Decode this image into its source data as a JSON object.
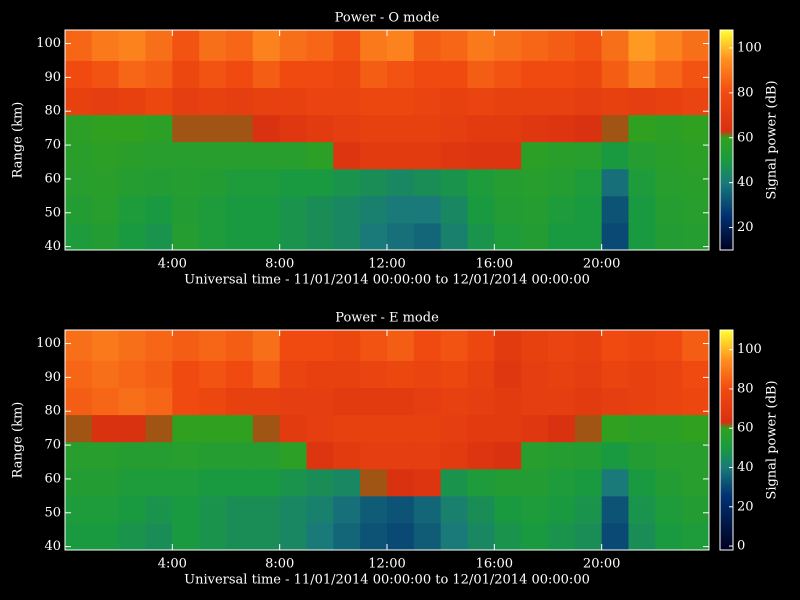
{
  "chart_data": [
    {
      "type": "heatmap",
      "title": "Power - O mode",
      "xlabel": "Universal time - 11/01/2014 00:00:00 to 12/01/2014 00:00:00",
      "ylabel": "Range (km)",
      "clabel": "Signal power (dB)",
      "xlim": [
        0,
        24
      ],
      "xticks": [
        {
          "value": 4,
          "label": "4:00"
        },
        {
          "value": 8,
          "label": "8:00"
        },
        {
          "value": 12,
          "label": "12:00"
        },
        {
          "value": 16,
          "label": "16:00"
        },
        {
          "value": 20,
          "label": "20:00"
        }
      ],
      "ylim": [
        39,
        104
      ],
      "yticks": [
        40,
        50,
        60,
        70,
        80,
        90,
        100
      ],
      "clim": [
        10,
        108
      ],
      "cticks": [
        20,
        40,
        60,
        80,
        100
      ],
      "colormap": {
        "stops": [
          10,
          25,
          40,
          50,
          60,
          63,
          80,
          95,
          108
        ],
        "colors": [
          "#000020",
          "#003070",
          "#1a7a7a",
          "#1a9a40",
          "#30a020",
          "#d83010",
          "#f04a10",
          "#ff9020",
          "#ffff30"
        ]
      },
      "xbins": [
        0,
        1,
        2,
        3,
        4,
        5,
        6,
        7,
        8,
        9,
        10,
        11,
        12,
        13,
        14,
        15,
        16,
        17,
        18,
        19,
        20,
        21,
        22,
        23,
        24
      ],
      "ybins": [
        39,
        47,
        55,
        63,
        71,
        79,
        87,
        95,
        104
      ],
      "z": [
        [
          52,
          54,
          50,
          48,
          55,
          52,
          50,
          50,
          48,
          46,
          44,
          40,
          38,
          36,
          42,
          48,
          52,
          54,
          50,
          50,
          30,
          50,
          54,
          55
        ],
        [
          54,
          56,
          52,
          50,
          54,
          52,
          50,
          50,
          48,
          46,
          44,
          42,
          40,
          40,
          44,
          50,
          54,
          55,
          52,
          50,
          32,
          50,
          55,
          56
        ],
        [
          56,
          57,
          55,
          54,
          55,
          54,
          52,
          52,
          50,
          50,
          48,
          46,
          44,
          46,
          48,
          52,
          55,
          56,
          55,
          52,
          38,
          52,
          56,
          57
        ],
        [
          57,
          58,
          57,
          56,
          56,
          56,
          56,
          56,
          56,
          58,
          66,
          70,
          70,
          70,
          68,
          66,
          66,
          58,
          57,
          56,
          50,
          55,
          57,
          58
        ],
        [
          58,
          60,
          60,
          58,
          62,
          62,
          62,
          64,
          68,
          70,
          72,
          74,
          74,
          74,
          72,
          70,
          70,
          68,
          66,
          64,
          62,
          60,
          58,
          60
        ],
        [
          74,
          72,
          74,
          78,
          72,
          74,
          72,
          74,
          74,
          76,
          76,
          78,
          78,
          76,
          74,
          76,
          74,
          74,
          74,
          72,
          74,
          72,
          74,
          76
        ],
        [
          80,
          82,
          86,
          84,
          78,
          82,
          80,
          84,
          80,
          80,
          78,
          84,
          82,
          80,
          80,
          84,
          82,
          80,
          80,
          78,
          84,
          90,
          86,
          82
        ],
        [
          86,
          90,
          92,
          88,
          82,
          88,
          86,
          92,
          88,
          86,
          82,
          90,
          92,
          84,
          86,
          90,
          88,
          86,
          84,
          82,
          88,
          96,
          92,
          88
        ]
      ]
    },
    {
      "type": "heatmap",
      "title": "Power - E mode",
      "xlabel": "Universal time - 11/01/2014 00:00:00 to 12/01/2014 00:00:00",
      "ylabel": "Range (km)",
      "clabel": "Signal power (dB)",
      "xlim": [
        0,
        24
      ],
      "xticks": [
        {
          "value": 4,
          "label": "4:00"
        },
        {
          "value": 8,
          "label": "8:00"
        },
        {
          "value": 12,
          "label": "12:00"
        },
        {
          "value": 16,
          "label": "16:00"
        },
        {
          "value": 20,
          "label": "20:00"
        }
      ],
      "ylim": [
        39,
        104
      ],
      "yticks": [
        40,
        50,
        60,
        70,
        80,
        90,
        100
      ],
      "clim": [
        -2,
        110
      ],
      "cticks": [
        0,
        20,
        40,
        60,
        80,
        100
      ],
      "colormap": {
        "stops": [
          -2,
          25,
          40,
          50,
          60,
          63,
          80,
          95,
          110
        ],
        "colors": [
          "#000020",
          "#003070",
          "#1a7a7a",
          "#1a9a40",
          "#30a020",
          "#d83010",
          "#f04a10",
          "#ff9020",
          "#ffff30"
        ]
      },
      "xbins": [
        0,
        1,
        2,
        3,
        4,
        5,
        6,
        7,
        8,
        9,
        10,
        11,
        12,
        13,
        14,
        15,
        16,
        17,
        18,
        19,
        20,
        21,
        22,
        23,
        24
      ],
      "ybins": [
        39,
        47,
        55,
        63,
        71,
        79,
        87,
        95,
        104
      ],
      "z": [
        [
          50,
          50,
          48,
          46,
          50,
          48,
          46,
          46,
          44,
          40,
          36,
          32,
          30,
          34,
          40,
          44,
          48,
          50,
          48,
          46,
          30,
          46,
          50,
          52
        ],
        [
          52,
          52,
          50,
          48,
          50,
          48,
          46,
          46,
          44,
          42,
          38,
          34,
          32,
          36,
          42,
          46,
          50,
          52,
          50,
          48,
          32,
          48,
          52,
          54
        ],
        [
          54,
          54,
          52,
          52,
          52,
          50,
          50,
          50,
          48,
          46,
          44,
          62,
          64,
          66,
          48,
          52,
          54,
          54,
          52,
          50,
          40,
          50,
          54,
          56
        ],
        [
          56,
          56,
          55,
          55,
          56,
          55,
          55,
          55,
          58,
          66,
          70,
          72,
          72,
          72,
          70,
          66,
          64,
          56,
          55,
          54,
          50,
          54,
          56,
          56
        ],
        [
          62,
          64,
          64,
          62,
          60,
          60,
          60,
          62,
          70,
          72,
          74,
          74,
          74,
          74,
          72,
          70,
          70,
          68,
          64,
          62,
          60,
          58,
          58,
          60
        ],
        [
          84,
          86,
          88,
          86,
          80,
          78,
          74,
          74,
          72,
          72,
          70,
          70,
          70,
          72,
          74,
          72,
          70,
          72,
          72,
          70,
          72,
          74,
          76,
          78
        ],
        [
          86,
          88,
          86,
          84,
          80,
          82,
          80,
          84,
          76,
          74,
          74,
          76,
          78,
          76,
          78,
          74,
          68,
          72,
          74,
          72,
          76,
          74,
          76,
          80
        ],
        [
          88,
          90,
          88,
          86,
          84,
          86,
          84,
          88,
          80,
          80,
          78,
          82,
          84,
          80,
          82,
          78,
          70,
          74,
          76,
          74,
          80,
          78,
          80,
          84
        ]
      ]
    }
  ]
}
